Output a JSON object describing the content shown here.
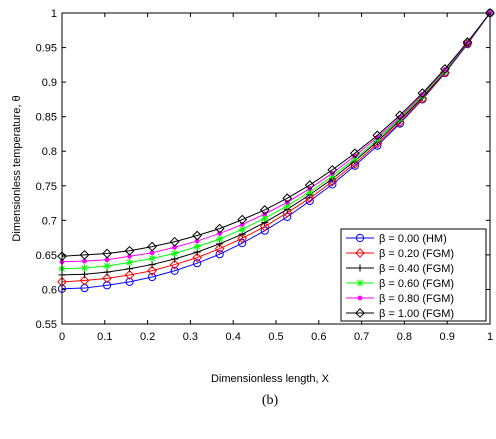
{
  "chart_data": {
    "type": "line",
    "xlabel": "Dimensionless length, X",
    "ylabel": "Dimensionless temperature, θ",
    "caption": "(b)",
    "xlim": [
      0,
      1
    ],
    "ylim": [
      0.55,
      1
    ],
    "grid": false,
    "legend_position": "bottom-right",
    "x_ticks": [
      "0",
      "0.1",
      "0.2",
      "0.3",
      "0.4",
      "0.5",
      "0.6",
      "0.7",
      "0.8",
      "0.9",
      "1"
    ],
    "y_ticks": [
      "0.55",
      "0.6",
      "0.65",
      "0.7",
      "0.75",
      "0.8",
      "0.85",
      "0.9",
      "0.95",
      "1"
    ],
    "x": [
      0,
      0.0526,
      0.1053,
      0.1579,
      0.2105,
      0.2632,
      0.3158,
      0.3684,
      0.4211,
      0.4737,
      0.5263,
      0.5789,
      0.6316,
      0.6842,
      0.7368,
      0.7895,
      0.8421,
      0.8947,
      0.9474,
      1
    ],
    "series": [
      {
        "name": "β = 0.00 (HM)",
        "color": "#0000ff",
        "marker": "circle",
        "values": [
          0.601,
          0.602,
          0.606,
          0.611,
          0.618,
          0.627,
          0.638,
          0.651,
          0.667,
          0.685,
          0.705,
          0.728,
          0.752,
          0.779,
          0.808,
          0.84,
          0.875,
          0.913,
          0.955,
          1.0
        ]
      },
      {
        "name": "β = 0.20 (FGM)",
        "color": "#ff0000",
        "marker": "diamond",
        "values": [
          0.611,
          0.613,
          0.616,
          0.621,
          0.627,
          0.636,
          0.646,
          0.659,
          0.674,
          0.691,
          0.711,
          0.732,
          0.756,
          0.782,
          0.811,
          0.842,
          0.876,
          0.914,
          0.956,
          1.0
        ]
      },
      {
        "name": "β = 0.40 (FGM)",
        "color": "#000000",
        "marker": "plus",
        "values": [
          0.621,
          0.622,
          0.625,
          0.63,
          0.636,
          0.644,
          0.654,
          0.666,
          0.68,
          0.697,
          0.716,
          0.737,
          0.76,
          0.786,
          0.814,
          0.845,
          0.878,
          0.915,
          0.956,
          1.0
        ]
      },
      {
        "name": "β = 0.60 (FGM)",
        "color": "#00ff00",
        "marker": "star",
        "values": [
          0.63,
          0.631,
          0.634,
          0.639,
          0.645,
          0.652,
          0.662,
          0.673,
          0.687,
          0.703,
          0.721,
          0.741,
          0.764,
          0.789,
          0.817,
          0.847,
          0.88,
          0.916,
          0.957,
          1.0
        ]
      },
      {
        "name": "β = 0.80 (FGM)",
        "color": "#ff00ff",
        "marker": "dot",
        "values": [
          0.64,
          0.641,
          0.643,
          0.648,
          0.653,
          0.661,
          0.67,
          0.681,
          0.694,
          0.709,
          0.726,
          0.746,
          0.768,
          0.793,
          0.82,
          0.849,
          0.882,
          0.918,
          0.957,
          1.0
        ]
      },
      {
        "name": "β = 1.00 (FGM)",
        "color": "#000000",
        "marker": "diamond",
        "values": [
          0.648,
          0.65,
          0.652,
          0.656,
          0.662,
          0.669,
          0.678,
          0.688,
          0.701,
          0.715,
          0.732,
          0.751,
          0.773,
          0.797,
          0.823,
          0.852,
          0.884,
          0.919,
          0.958,
          1.0
        ]
      }
    ]
  }
}
